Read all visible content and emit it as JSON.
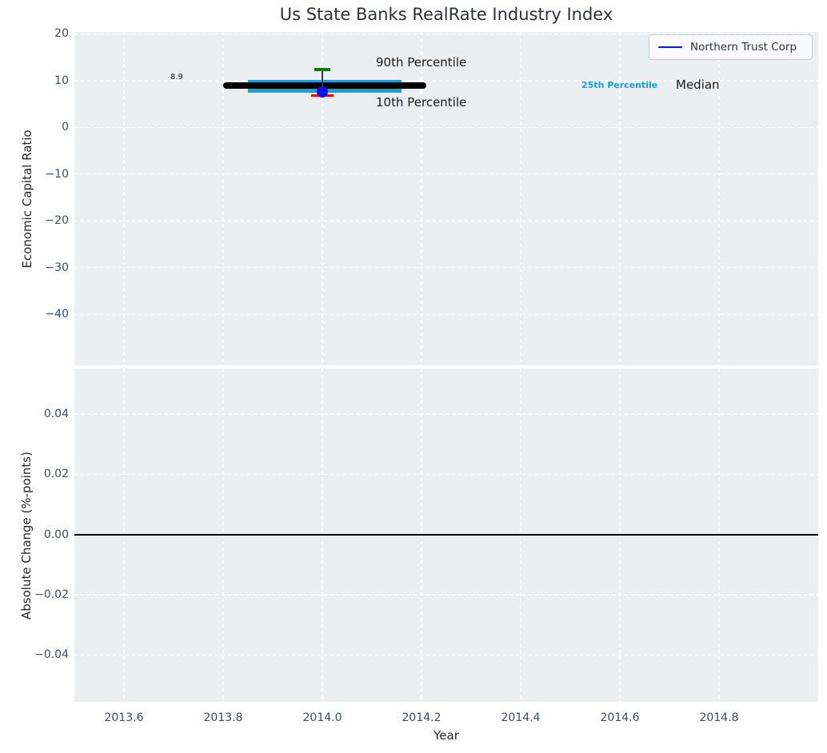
{
  "title": "Us State Banks RealRate Industry Index",
  "colors": {
    "axes_background": "#eceff1",
    "grid": "#ffffff",
    "tick_label": "#3d4d63",
    "median_line": "#000000",
    "iqr_band": "#16a0d6",
    "p90_cap": "#008000",
    "p10_cap": "#ff0000",
    "company_point": "#0f0fe8",
    "legend_line": "#1414e0",
    "zero_line": "#000000"
  },
  "chart_data": {
    "type": "errorbar",
    "title": "Us State Banks RealRate Industry Index",
    "xlabel": "Year",
    "grid": true,
    "xlim": [
      2013.5,
      2015.0
    ],
    "xticks": [
      2013.6,
      2013.8,
      2014.0,
      2014.2,
      2014.4,
      2014.6,
      2014.8
    ],
    "xtick_labels": [
      "2013.6",
      "2013.8",
      "2014.0",
      "2014.2",
      "2014.4",
      "2014.6",
      "2014.8"
    ],
    "legend": {
      "position": "upper right",
      "entries": [
        "Northern Trust Corp"
      ]
    },
    "annotations": {
      "median_value": "8.9",
      "p90": "90th Percentile",
      "p10": "10th Percentile",
      "p25": "25th Percentile",
      "median": "Median"
    },
    "panels": [
      {
        "ylabel": "Economic Capital Ratio",
        "ylim": [
          -50.9,
          20.4
        ],
        "yticks": [
          20,
          10,
          0,
          -10,
          -20,
          -30,
          -40
        ],
        "ytick_labels": [
          "20",
          "10",
          "0",
          "−10",
          "−20",
          "−30",
          "−40"
        ],
        "data": {
          "year": 2014.0,
          "median": 8.9,
          "median_span_years": [
            2013.8,
            2014.21
          ],
          "percentile_25_75_band": [
            7.4,
            10.1
          ],
          "band_span_years": [
            2013.85,
            2014.16
          ],
          "percentile_90": 12.4,
          "percentile_10": 6.8,
          "company_name": "Northern Trust Corp",
          "company_value": 7.5
        }
      },
      {
        "ylabel": "Absolute Change (%-points)",
        "ylim": [
          -0.0556,
          0.0551
        ],
        "yticks": [
          0.04,
          0.02,
          0.0,
          -0.02,
          -0.04
        ],
        "ytick_labels": [
          "0.04",
          "0.02",
          "0.00",
          "−0.02",
          "−0.04"
        ],
        "data": {
          "zero_line": 0.0
        }
      }
    ]
  }
}
